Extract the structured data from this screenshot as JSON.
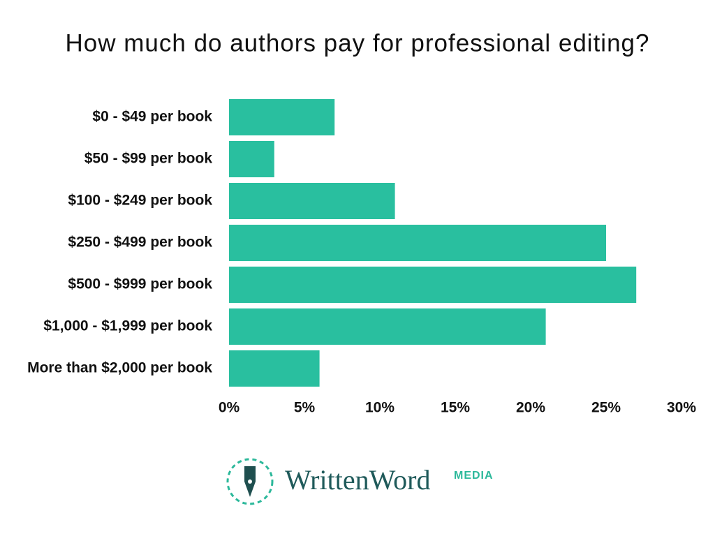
{
  "chart_data": {
    "type": "barh",
    "title": "How much do authors pay for professional editing?",
    "categories": [
      "$0 - $49 per book",
      "$50 - $99 per book",
      "$100 - $249 per book",
      "$250 - $499 per book",
      "$500 - $999 per book",
      "$1,000 - $1,999 per book",
      "More than $2,000 per book"
    ],
    "values": [
      7,
      3,
      11,
      25,
      27,
      21,
      6
    ],
    "color": "#29bf9f",
    "xlim": [
      0,
      30
    ],
    "xticks": [
      {
        "value": 0,
        "label": "0%"
      },
      {
        "value": 5,
        "label": "5%"
      },
      {
        "value": 10,
        "label": "10%"
      },
      {
        "value": 15,
        "label": "15%"
      },
      {
        "value": 20,
        "label": "20%"
      },
      {
        "value": 25,
        "label": "25%"
      },
      {
        "value": 30,
        "label": "30%"
      }
    ],
    "grid": false
  },
  "logo": {
    "name": "WrittenWord",
    "tag": "MEDIA"
  }
}
